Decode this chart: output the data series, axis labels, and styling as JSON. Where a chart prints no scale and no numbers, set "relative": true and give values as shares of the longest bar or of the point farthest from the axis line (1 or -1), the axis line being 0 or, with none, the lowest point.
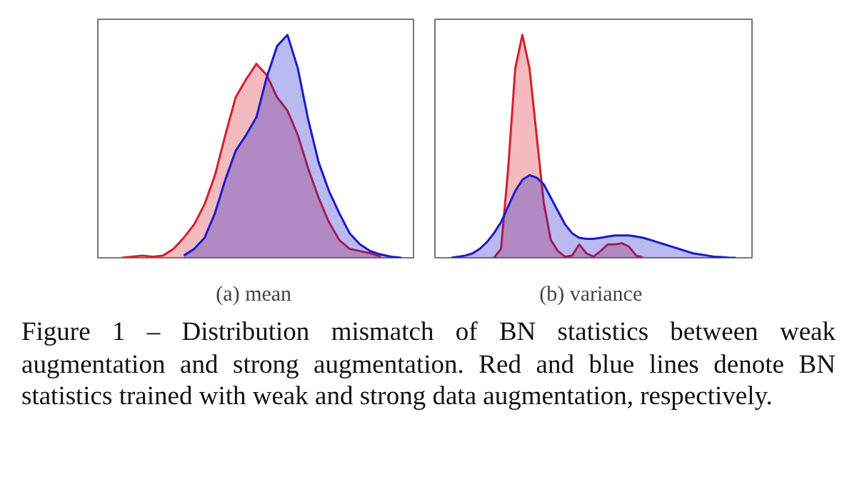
{
  "chart_data": [
    {
      "type": "area",
      "relative": true,
      "xlabel": "(a)  mean",
      "categories": [
        null,
        null,
        null,
        null,
        null,
        null,
        null,
        null,
        null,
        null,
        null,
        null,
        null,
        null,
        null,
        null,
        null,
        null,
        null,
        null,
        null,
        null,
        null,
        null,
        null,
        null,
        null,
        null,
        null,
        null,
        null
      ],
      "series": [
        {
          "color": "#d81e2c",
          "values": [
            null,
            null,
            0,
            0.005,
            0.01,
            0.005,
            0.01,
            0.04,
            0.09,
            0.15,
            0.24,
            0.37,
            0.55,
            0.72,
            0.8,
            0.87,
            0.82,
            0.72,
            0.66,
            0.55,
            0.4,
            0.27,
            0.16,
            0.08,
            0.04,
            0.03,
            0.02,
            0.005,
            null,
            null,
            null
          ]
        },
        {
          "color": "#1a1acc",
          "values": [
            null,
            null,
            null,
            null,
            null,
            null,
            null,
            null,
            0.01,
            0.04,
            0.09,
            0.2,
            0.35,
            0.48,
            0.55,
            0.63,
            0.81,
            0.95,
            1.0,
            0.85,
            0.62,
            0.43,
            0.3,
            0.2,
            0.11,
            0.06,
            0.03,
            0.015,
            0.005,
            0,
            null
          ]
        }
      ],
      "annotations": [
        "Figure 1 – Distribution mismatch of BN statistics between weak augmentation and strong augmentation. Red and blue lines denote BN statistics trained with weak and strong data augmentation, respectively."
      ]
    },
    {
      "type": "area",
      "relative": true,
      "xlabel": "(b)  variance",
      "categories": [
        null,
        null,
        null,
        null,
        null,
        null,
        null,
        null,
        null,
        null,
        null,
        null,
        null,
        null,
        null,
        null,
        null,
        null,
        null,
        null,
        null,
        null,
        null,
        null,
        null,
        null,
        null,
        null,
        null,
        null,
        null,
        null,
        null,
        null,
        null,
        null,
        null,
        null,
        null,
        null,
        null,
        null,
        null,
        null,
        null
      ],
      "series": [
        {
          "color": "#d81e2c",
          "values": [
            null,
            null,
            null,
            null,
            null,
            null,
            null,
            null,
            0,
            0.04,
            0.4,
            0.85,
            1.0,
            0.85,
            0.55,
            0.25,
            0.08,
            0.03,
            0.005,
            0.01,
            0.06,
            0.02,
            0.005,
            0.03,
            0.06,
            0.06,
            0.065,
            0.05,
            0.01,
            0,
            null,
            null,
            null,
            null,
            null,
            null,
            null,
            null,
            null,
            null,
            null,
            null,
            null,
            null,
            null
          ]
        },
        {
          "color": "#1a1acc",
          "values": [
            null,
            null,
            0,
            0.005,
            0.01,
            0.02,
            0.04,
            0.07,
            0.11,
            0.16,
            0.23,
            0.3,
            0.35,
            0.37,
            0.36,
            0.33,
            0.27,
            0.21,
            0.15,
            0.11,
            0.09,
            0.085,
            0.085,
            0.09,
            0.095,
            0.1,
            0.1,
            0.1,
            0.095,
            0.09,
            0.08,
            0.07,
            0.06,
            0.05,
            0.04,
            0.03,
            0.02,
            0.015,
            0.01,
            0.005,
            0.003,
            0.001,
            0,
            null,
            null
          ]
        }
      ]
    }
  ]
}
